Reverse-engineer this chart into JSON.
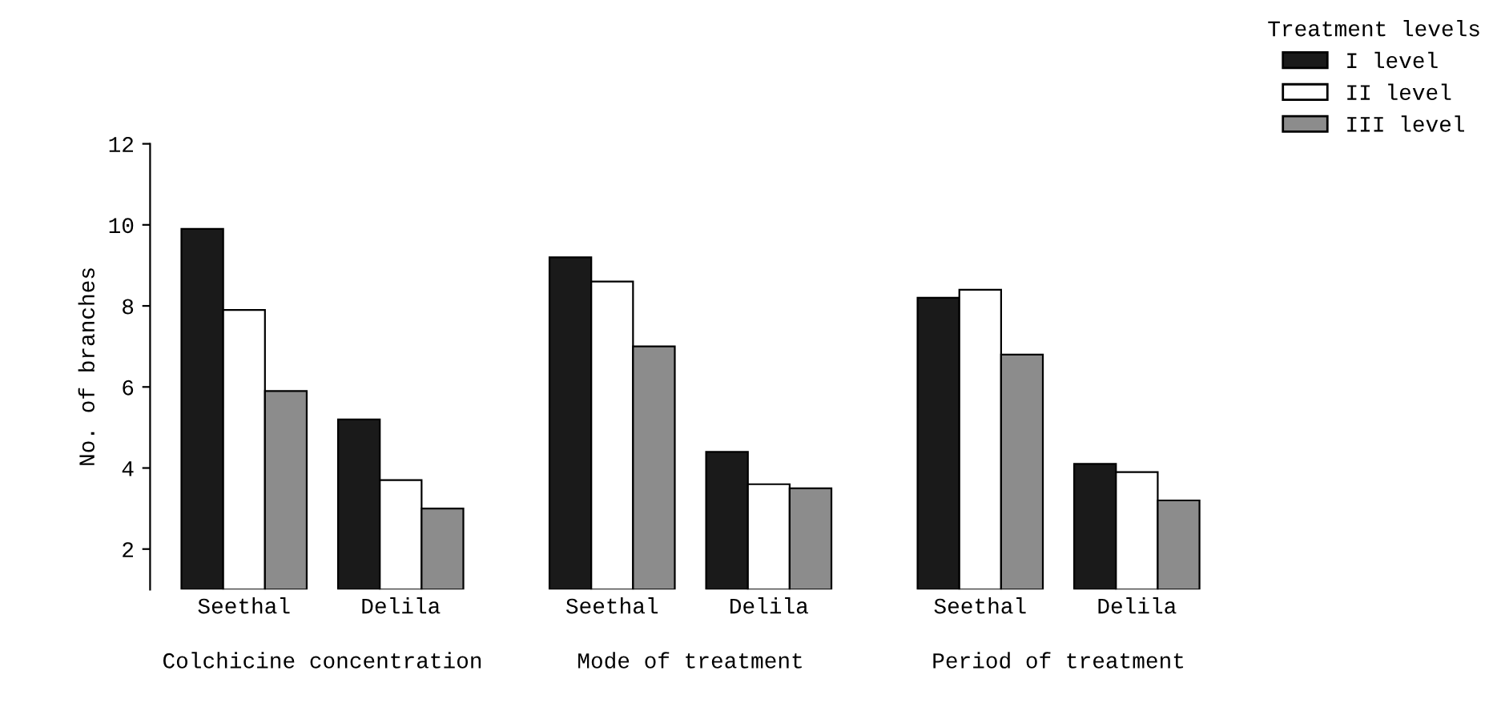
{
  "chart_data": {
    "type": "bar",
    "ylabel": "No. of branches",
    "legend_title": "Treatment levels",
    "categories": [
      "Seethal",
      "Delila",
      "Seethal",
      "Delila",
      "Seethal",
      "Delila"
    ],
    "series": [
      {
        "name": "I level",
        "color": "#1a1a1a",
        "values": [
          9.9,
          5.2,
          9.2,
          4.4,
          8.2,
          4.1
        ]
      },
      {
        "name": "II level",
        "color": "#ffffff",
        "values": [
          7.9,
          3.7,
          8.6,
          3.6,
          8.4,
          3.9
        ]
      },
      {
        "name": "III level",
        "color": "#8c8c8c",
        "values": [
          5.9,
          3.0,
          7.0,
          3.5,
          6.8,
          3.2
        ]
      }
    ],
    "ylim": [
      1,
      12
    ],
    "yticks": [
      2,
      4,
      6,
      8,
      10,
      12
    ],
    "grid": false,
    "legend": "top right",
    "annotations": [
      "Colchicine concentration",
      "Mode of treatment",
      "Period of treatment"
    ]
  }
}
